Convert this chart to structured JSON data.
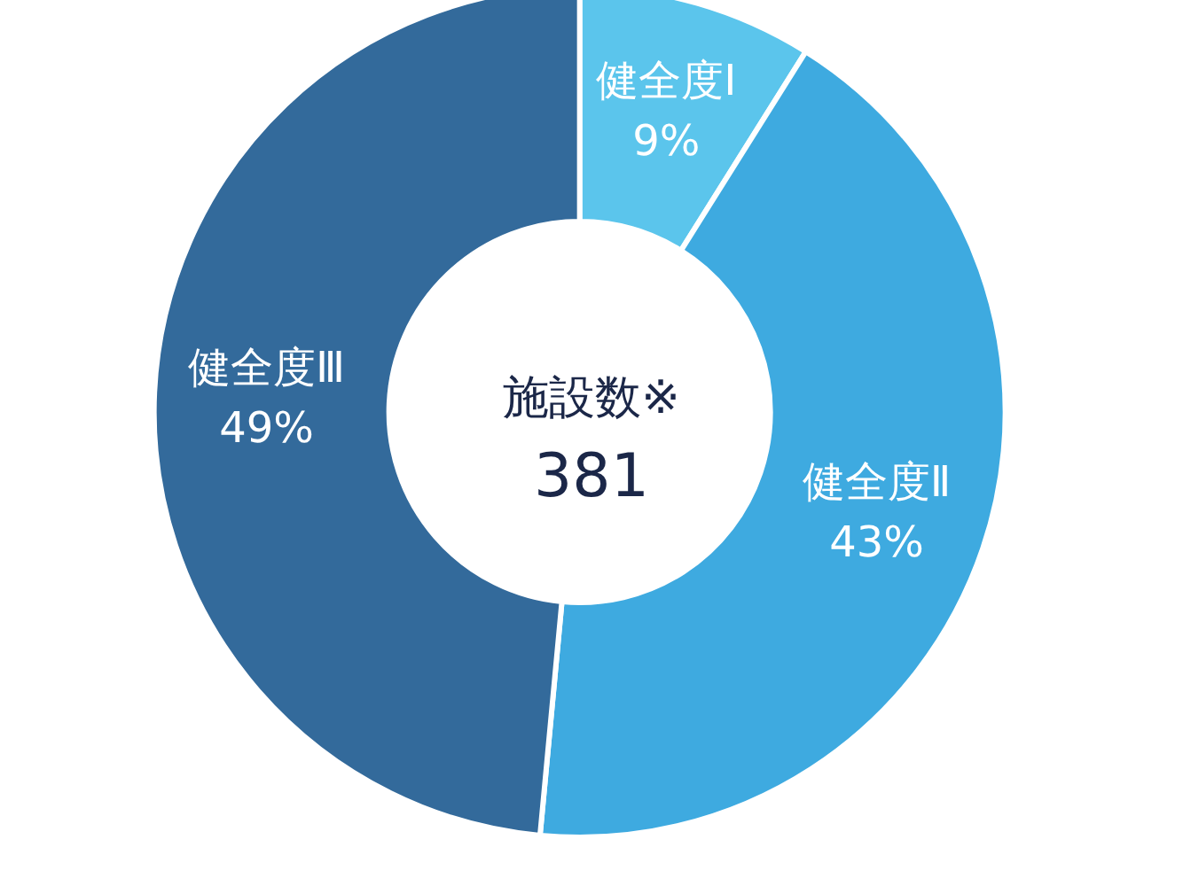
{
  "chart_data": {
    "type": "donut",
    "title": "施設数※",
    "subtitle": "381",
    "categories": [
      "健全度Ⅰ",
      "健全度Ⅱ",
      "健全度Ⅲ"
    ],
    "values": [
      9,
      43,
      49
    ],
    "value_labels": [
      "9%",
      "43%",
      "49%"
    ],
    "colors": [
      "#5bc5ec",
      "#3eaae0",
      "#336a9b"
    ],
    "legend": false
  }
}
